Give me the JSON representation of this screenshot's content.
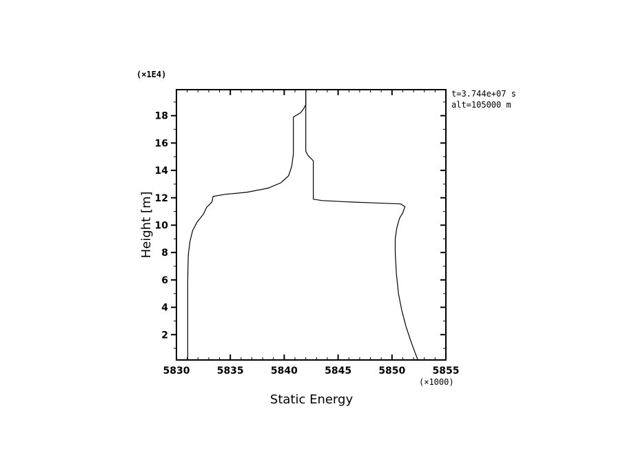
{
  "chart_data": {
    "type": "line",
    "title": "",
    "xlabel": "Static Energy",
    "ylabel": "Height [m]",
    "x_multiplier_label": "(×1000)",
    "y_multiplier_label": "(×1E4)",
    "xlim": [
      5830,
      5855
    ],
    "ylim": [
      0.15,
      19.9
    ],
    "x_ticks": [
      5830,
      5835,
      5840,
      5845,
      5850,
      5855
    ],
    "x_tick_labels": [
      "5830",
      "5835",
      "5840",
      "5845",
      "5850",
      "5855"
    ],
    "y_ticks": [
      2,
      4,
      6,
      8,
      10,
      12,
      14,
      16,
      18
    ],
    "y_tick_labels": [
      "2",
      "4",
      "6",
      "8",
      "10",
      "12",
      "14",
      "16",
      "18"
    ],
    "grid": false,
    "annotations": [
      "t=3.744e+07 s",
      "alt=105000 m"
    ],
    "series": [
      {
        "name": "profile-1",
        "points": [
          [
            5831.05,
            0.15
          ],
          [
            5831.05,
            6
          ],
          [
            5831.1,
            7.8
          ],
          [
            5831.25,
            8.8
          ],
          [
            5831.5,
            9.6
          ],
          [
            5831.9,
            10.2
          ],
          [
            5832.5,
            10.8
          ],
          [
            5832.8,
            11.3
          ],
          [
            5833.3,
            11.7
          ],
          [
            5833.4,
            12.1
          ],
          [
            5834.5,
            12.25
          ],
          [
            5836.5,
            12.4
          ],
          [
            5838.5,
            12.7
          ],
          [
            5839.7,
            13.1
          ],
          [
            5840.4,
            13.6
          ],
          [
            5840.7,
            14.3
          ],
          [
            5840.85,
            15.2
          ],
          [
            5840.85,
            17.9
          ],
          [
            5841.5,
            18.2
          ],
          [
            5841.8,
            18.5
          ],
          [
            5842.0,
            18.8
          ],
          [
            5842.0,
            19.9
          ]
        ]
      },
      {
        "name": "profile-2",
        "points": [
          [
            5842.0,
            19.9
          ],
          [
            5842.0,
            15.4
          ],
          [
            5842.2,
            15.1
          ],
          [
            5842.7,
            14.7
          ],
          [
            5842.7,
            11.9
          ],
          [
            5843.5,
            11.8
          ],
          [
            5846,
            11.7
          ],
          [
            5848.5,
            11.62
          ],
          [
            5850.8,
            11.55
          ],
          [
            5851.2,
            11.35
          ],
          [
            5851.0,
            10.9
          ],
          [
            5850.7,
            10.5
          ],
          [
            5850.45,
            9.8
          ],
          [
            5850.3,
            9.0
          ],
          [
            5850.3,
            8.0
          ],
          [
            5850.4,
            6.5
          ],
          [
            5850.6,
            5.0
          ],
          [
            5850.9,
            3.8
          ],
          [
            5851.3,
            2.6
          ],
          [
            5851.8,
            1.4
          ],
          [
            5852.4,
            0.15
          ]
        ]
      }
    ]
  }
}
